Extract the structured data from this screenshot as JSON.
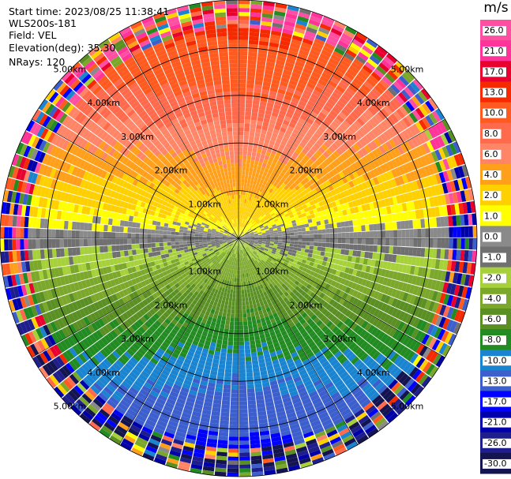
{
  "header": {
    "start_time": "Start time: 2023/08/25 11:38:41",
    "instrument": "WLS200s-181",
    "field": "Field: VEL",
    "elevation": "Elevation(deg): 35.30",
    "nrays": "NRays: 120"
  },
  "chart_data": {
    "type": "heatmap",
    "projection": "polar-ppi",
    "field": "VEL",
    "unit": "m/s",
    "n_rays": 120,
    "max_range_km": 5.0,
    "range_rings_km": [
      1.0,
      2.0,
      3.0,
      4.0,
      5.0
    ],
    "range_ring_labels": [
      "1.00km",
      "2.00km",
      "3.00km",
      "4.00km",
      "5.00km"
    ],
    "spokes_deg": [
      0,
      30,
      60,
      90,
      120,
      150,
      180,
      210,
      240,
      270,
      300,
      330
    ],
    "colorbar": {
      "label": "m/s",
      "tick_labels": [
        "26.0",
        "21.0",
        "17.0",
        "13.0",
        "10.0",
        "8.0",
        "6.0",
        "4.0",
        "2.0",
        "1.0",
        "0.0",
        "-1.0",
        "-2.0",
        "-4.0",
        "-6.0",
        "-8.0",
        "-10.0",
        "-13.0",
        "-17.0",
        "-21.0",
        "-26.0",
        "-30.0"
      ],
      "bins": [
        {
          "min": 26,
          "max": 30,
          "color": "#ff4fa3"
        },
        {
          "min": 21,
          "max": 26,
          "color": "#ff3399"
        },
        {
          "min": 17,
          "max": 21,
          "color": "#e8002e"
        },
        {
          "min": 13,
          "max": 17,
          "color": "#f52a00"
        },
        {
          "min": 10,
          "max": 13,
          "color": "#ff5a1f"
        },
        {
          "min": 8,
          "max": 10,
          "color": "#ff6a4d"
        },
        {
          "min": 6,
          "max": 8,
          "color": "#ff8566"
        },
        {
          "min": 4,
          "max": 6,
          "color": "#ff9f1a"
        },
        {
          "min": 2,
          "max": 4,
          "color": "#ffd000"
        },
        {
          "min": 1,
          "max": 2,
          "color": "#ffff00"
        },
        {
          "min": 0,
          "max": 1,
          "color": "#8a8a8a"
        },
        {
          "min": -1,
          "max": 0,
          "color": "#707070"
        },
        {
          "min": -2,
          "max": -1,
          "color": "#a6d13a"
        },
        {
          "min": -4,
          "max": -2,
          "color": "#7ba82b"
        },
        {
          "min": -6,
          "max": -4,
          "color": "#5a8f23"
        },
        {
          "min": -8,
          "max": -6,
          "color": "#228b22"
        },
        {
          "min": -10,
          "max": -8,
          "color": "#1a84d1"
        },
        {
          "min": -13,
          "max": -10,
          "color": "#3c5fcd"
        },
        {
          "min": -17,
          "max": -13,
          "color": "#0000ff"
        },
        {
          "min": -21,
          "max": -17,
          "color": "#0000aa"
        },
        {
          "min": -26,
          "max": -21,
          "color": "#1e1e8c"
        },
        {
          "min": -30,
          "max": -26,
          "color": "#141450"
        }
      ]
    },
    "velocity_pattern": {
      "description_for_render_only": "",
      "near_range_max_speed": 6,
      "far_range_max_speed": 13,
      "min_speed_at_range_km_0": 0,
      "dominant_direction": "north-positive"
    }
  }
}
